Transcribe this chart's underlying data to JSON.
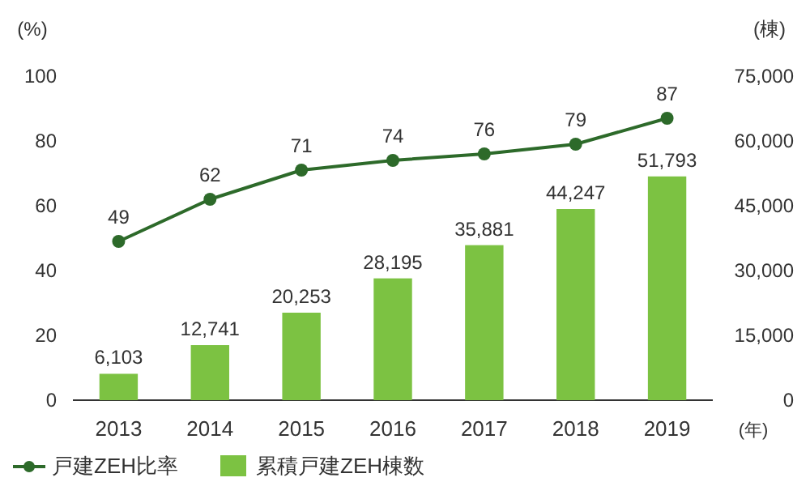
{
  "chart_data": {
    "type": "bar",
    "categories": [
      "2013",
      "2014",
      "2015",
      "2016",
      "2017",
      "2018",
      "2019"
    ],
    "xlabel": "(年)",
    "ylabel": "(%)",
    "y2label": "(棟)",
    "ylim": [
      0,
      100
    ],
    "yticks": [
      0,
      20,
      40,
      60,
      80,
      100
    ],
    "y2lim": [
      0,
      75000
    ],
    "y2ticks": [
      0,
      {
        "value": 15000,
        "label": "15,000"
      },
      {
        "value": 30000,
        "label": "30,000"
      },
      {
        "value": 45000,
        "label": "45,000"
      },
      {
        "value": 60000,
        "label": "60,000"
      },
      {
        "value": 75000,
        "label": "75,000"
      }
    ],
    "series": [
      {
        "name": "戸建ZEH比率",
        "type": "line",
        "color": "#2d6a2a",
        "marker": "circle",
        "values": [
          49,
          62,
          71,
          74,
          76,
          79,
          87
        ],
        "value_labels": [
          "49",
          "62",
          "71",
          "74",
          "76",
          "79",
          "87"
        ]
      },
      {
        "name": "累積戸建ZEH棟数",
        "type": "bar",
        "axis": "y2",
        "color": "#7cc242",
        "values": [
          6103,
          12741,
          20253,
          28195,
          35881,
          44247,
          51793
        ],
        "value_labels": [
          "6,103",
          "12,741",
          "20,253",
          "28,195",
          "35,881",
          "44,247",
          "51,793"
        ]
      }
    ],
    "legend": "bottom",
    "grid": false
  }
}
